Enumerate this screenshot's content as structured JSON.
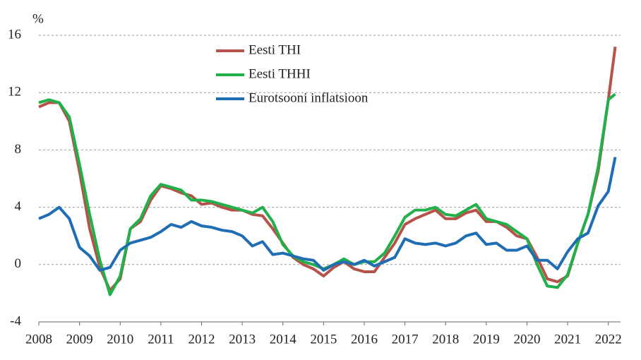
{
  "chart_data": {
    "type": "line",
    "y_label": "%",
    "x": [
      2008,
      2008.25,
      2008.5,
      2008.75,
      2009,
      2009.25,
      2009.5,
      2009.75,
      2010,
      2010.25,
      2010.5,
      2010.75,
      2011,
      2011.25,
      2011.5,
      2011.75,
      2012,
      2012.25,
      2012.5,
      2012.75,
      2013,
      2013.25,
      2013.5,
      2013.75,
      2014,
      2014.25,
      2014.5,
      2014.75,
      2015,
      2015.25,
      2015.5,
      2015.75,
      2016,
      2016.25,
      2016.5,
      2016.75,
      2017,
      2017.25,
      2017.5,
      2017.75,
      2018,
      2018.25,
      2018.5,
      2018.75,
      2019,
      2019.25,
      2019.5,
      2019.75,
      2020,
      2020.25,
      2020.5,
      2020.75,
      2021,
      2021.25,
      2021.5,
      2021.75,
      2022,
      2022.17
    ],
    "xlim": [
      2008,
      2022.3
    ],
    "xticks": [
      2008,
      2009,
      2010,
      2011,
      2012,
      2013,
      2014,
      2015,
      2016,
      2017,
      2018,
      2019,
      2020,
      2021,
      2022
    ],
    "ylim": [
      -4,
      16
    ],
    "yticks": [
      -4,
      0,
      4,
      8,
      12,
      16
    ],
    "grid": true,
    "series": [
      {
        "name": "Eesti THI",
        "color": "#b5534a",
        "values": [
          11.0,
          11.3,
          11.3,
          10.0,
          6.5,
          2.5,
          -0.2,
          -1.8,
          -1.0,
          2.5,
          3.0,
          4.5,
          5.5,
          5.3,
          5.0,
          4.8,
          4.2,
          4.3,
          4.0,
          3.8,
          3.8,
          3.5,
          3.4,
          2.5,
          1.5,
          0.5,
          0.0,
          -0.3,
          -0.8,
          -0.2,
          0.2,
          -0.3,
          -0.5,
          -0.5,
          0.5,
          1.5,
          2.8,
          3.2,
          3.5,
          3.8,
          3.2,
          3.2,
          3.6,
          3.8,
          3.0,
          3.0,
          2.6,
          2.0,
          1.8,
          0.5,
          -1.0,
          -1.2,
          -0.8,
          1.5,
          3.5,
          6.5,
          11.5,
          15.2
        ]
      },
      {
        "name": "Eesti THHI",
        "color": "#22b04b",
        "values": [
          11.3,
          11.5,
          11.3,
          10.3,
          7.0,
          3.5,
          0.3,
          -2.1,
          -0.8,
          2.5,
          3.2,
          4.8,
          5.6,
          5.4,
          5.2,
          4.5,
          4.5,
          4.4,
          4.2,
          4.0,
          3.8,
          3.6,
          4.0,
          3.0,
          1.4,
          0.6,
          0.2,
          0.0,
          -0.3,
          0.0,
          0.4,
          0.0,
          0.2,
          0.2,
          0.8,
          2.0,
          3.3,
          3.8,
          3.8,
          4.0,
          3.5,
          3.4,
          3.8,
          4.2,
          3.2,
          3.0,
          2.8,
          2.3,
          1.8,
          0.0,
          -1.5,
          -1.6,
          -0.7,
          1.5,
          3.5,
          6.8,
          11.5,
          11.9
        ]
      },
      {
        "name": "Eurotsooni inflatsioon",
        "color": "#1f6eb4",
        "values": [
          3.2,
          3.5,
          4.0,
          3.2,
          1.2,
          0.6,
          -0.4,
          -0.2,
          1.0,
          1.5,
          1.7,
          1.9,
          2.3,
          2.8,
          2.6,
          3.0,
          2.7,
          2.6,
          2.4,
          2.3,
          2.0,
          1.3,
          1.6,
          0.7,
          0.8,
          0.6,
          0.4,
          0.3,
          -0.4,
          0.0,
          0.2,
          0.0,
          0.3,
          -0.1,
          0.2,
          0.5,
          1.8,
          1.5,
          1.4,
          1.5,
          1.3,
          1.5,
          2.0,
          2.2,
          1.4,
          1.5,
          1.0,
          1.0,
          1.3,
          0.3,
          0.3,
          -0.3,
          0.9,
          1.8,
          2.2,
          4.1,
          5.1,
          7.5
        ]
      }
    ]
  }
}
